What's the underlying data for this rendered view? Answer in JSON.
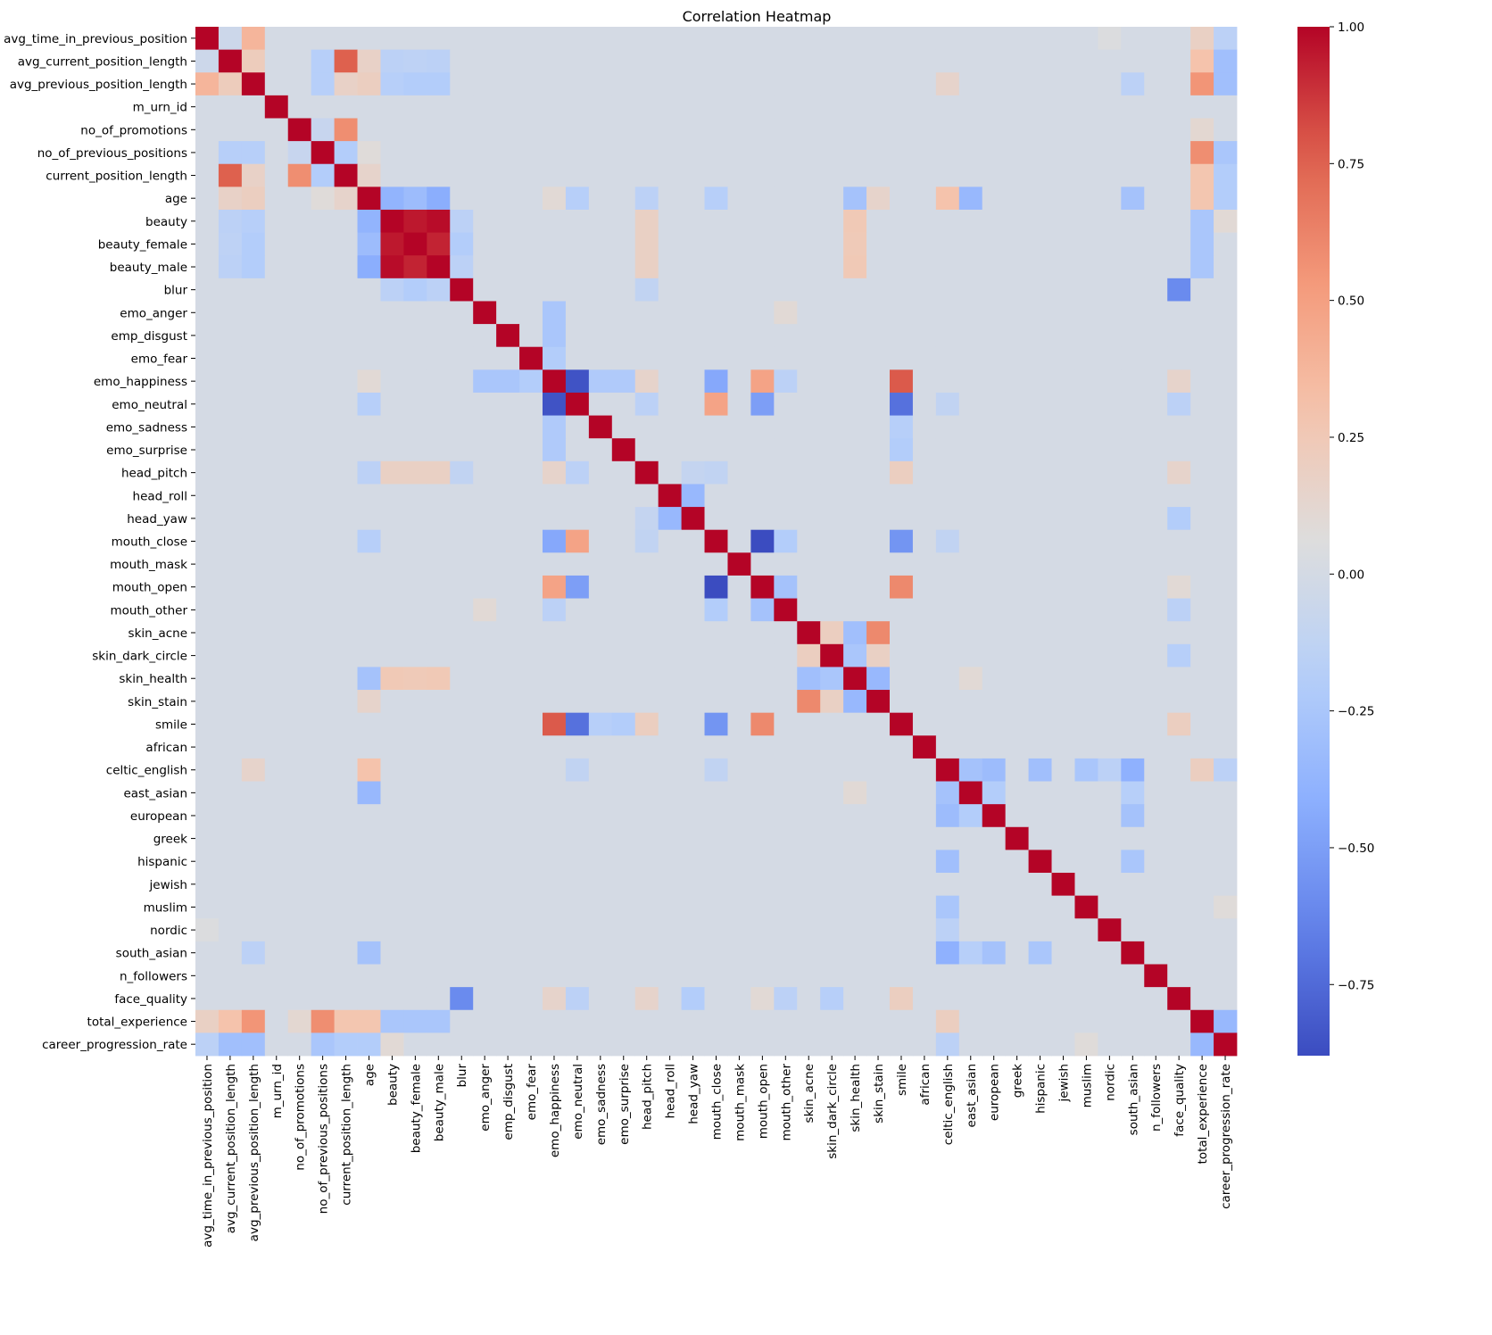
{
  "chart_data": {
    "type": "heatmap",
    "title": "Correlation Heatmap",
    "labels": [
      "avg_time_in_previous_position",
      "avg_current_position_length",
      "avg_previous_position_length",
      "m_urn_id",
      "no_of_promotions",
      "no_of_previous_positions",
      "current_position_length",
      "age",
      "beauty",
      "beauty_female",
      "beauty_male",
      "blur",
      "emo_anger",
      "emp_disgust",
      "emo_fear",
      "emo_happiness",
      "emo_neutral",
      "emo_sadness",
      "emo_surprise",
      "head_pitch",
      "head_roll",
      "head_yaw",
      "mouth_close",
      "mouth_mask",
      "mouth_open",
      "mouth_other",
      "skin_acne",
      "skin_dark_circle",
      "skin_health",
      "skin_stain",
      "smile",
      "african",
      "celtic_english",
      "east_asian",
      "european",
      "greek",
      "hispanic",
      "jewish",
      "muslim",
      "nordic",
      "south_asian",
      "n_followers",
      "face_quality",
      "total_experience",
      "career_progression_rate"
    ],
    "correlations": [
      {
        "a": "avg_time_in_previous_position",
        "b": "avg_current_position_length",
        "v": -0.05
      },
      {
        "a": "avg_time_in_previous_position",
        "b": "avg_previous_position_length",
        "v": 0.38
      },
      {
        "a": "avg_time_in_previous_position",
        "b": "total_experience",
        "v": 0.18
      },
      {
        "a": "avg_time_in_previous_position",
        "b": "career_progression_rate",
        "v": -0.15
      },
      {
        "a": "avg_time_in_previous_position",
        "b": "nordic",
        "v": 0.05
      },
      {
        "a": "avg_current_position_length",
        "b": "avg_previous_position_length",
        "v": 0.22
      },
      {
        "a": "avg_current_position_length",
        "b": "current_position_length",
        "v": 0.76
      },
      {
        "a": "avg_current_position_length",
        "b": "no_of_previous_positions",
        "v": -0.18
      },
      {
        "a": "avg_current_position_length",
        "b": "age",
        "v": 0.17
      },
      {
        "a": "avg_current_position_length",
        "b": "beauty",
        "v": -0.15
      },
      {
        "a": "avg_current_position_length",
        "b": "beauty_female",
        "v": -0.14
      },
      {
        "a": "avg_current_position_length",
        "b": "beauty_male",
        "v": -0.15
      },
      {
        "a": "avg_current_position_length",
        "b": "total_experience",
        "v": 0.3
      },
      {
        "a": "avg_current_position_length",
        "b": "career_progression_rate",
        "v": -0.3
      },
      {
        "a": "avg_previous_position_length",
        "b": "current_position_length",
        "v": 0.17
      },
      {
        "a": "avg_previous_position_length",
        "b": "age",
        "v": 0.2
      },
      {
        "a": "avg_previous_position_length",
        "b": "no_of_previous_positions",
        "v": -0.18
      },
      {
        "a": "avg_previous_position_length",
        "b": "beauty",
        "v": -0.18
      },
      {
        "a": "avg_previous_position_length",
        "b": "beauty_female",
        "v": -0.2
      },
      {
        "a": "avg_previous_position_length",
        "b": "beauty_male",
        "v": -0.2
      },
      {
        "a": "avg_previous_position_length",
        "b": "celtic_english",
        "v": 0.15
      },
      {
        "a": "avg_previous_position_length",
        "b": "total_experience",
        "v": 0.55
      },
      {
        "a": "avg_previous_position_length",
        "b": "career_progression_rate",
        "v": -0.3
      },
      {
        "a": "avg_previous_position_length",
        "b": "south_asian",
        "v": -0.15
      },
      {
        "a": "no_of_promotions",
        "b": "current_position_length",
        "v": 0.58
      },
      {
        "a": "no_of_promotions",
        "b": "no_of_previous_positions",
        "v": -0.08
      },
      {
        "a": "no_of_promotions",
        "b": "total_experience",
        "v": 0.12
      },
      {
        "a": "no_of_previous_positions",
        "b": "current_position_length",
        "v": -0.2
      },
      {
        "a": "no_of_previous_positions",
        "b": "age",
        "v": 0.08
      },
      {
        "a": "no_of_previous_positions",
        "b": "total_experience",
        "v": 0.58
      },
      {
        "a": "no_of_previous_positions",
        "b": "career_progression_rate",
        "v": -0.25
      },
      {
        "a": "current_position_length",
        "b": "age",
        "v": 0.15
      },
      {
        "a": "current_position_length",
        "b": "total_experience",
        "v": 0.28
      },
      {
        "a": "current_position_length",
        "b": "career_progression_rate",
        "v": -0.2
      },
      {
        "a": "age",
        "b": "beauty",
        "v": -0.38
      },
      {
        "a": "age",
        "b": "beauty_female",
        "v": -0.32
      },
      {
        "a": "age",
        "b": "beauty_male",
        "v": -0.42
      },
      {
        "a": "age",
        "b": "emo_happiness",
        "v": 0.1
      },
      {
        "a": "age",
        "b": "emo_neutral",
        "v": -0.18
      },
      {
        "a": "age",
        "b": "head_pitch",
        "v": -0.15
      },
      {
        "a": "age",
        "b": "mouth_close",
        "v": -0.18
      },
      {
        "a": "age",
        "b": "skin_health",
        "v": -0.28
      },
      {
        "a": "age",
        "b": "skin_stain",
        "v": 0.15
      },
      {
        "a": "age",
        "b": "celtic_english",
        "v": 0.3
      },
      {
        "a": "age",
        "b": "east_asian",
        "v": -0.35
      },
      {
        "a": "age",
        "b": "south_asian",
        "v": -0.28
      },
      {
        "a": "age",
        "b": "total_experience",
        "v": 0.28
      },
      {
        "a": "age",
        "b": "career_progression_rate",
        "v": -0.2
      },
      {
        "a": "beauty",
        "b": "beauty_female",
        "v": 0.95
      },
      {
        "a": "beauty",
        "b": "beauty_male",
        "v": 0.98
      },
      {
        "a": "beauty",
        "b": "head_pitch",
        "v": 0.18
      },
      {
        "a": "beauty",
        "b": "skin_health",
        "v": 0.25
      },
      {
        "a": "beauty",
        "b": "total_experience",
        "v": -0.25
      },
      {
        "a": "beauty",
        "b": "career_progression_rate",
        "v": 0.1
      },
      {
        "a": "beauty",
        "b": "blur",
        "v": -0.15
      },
      {
        "a": "beauty_female",
        "b": "beauty_male",
        "v": 0.92
      },
      {
        "a": "beauty_female",
        "b": "head_pitch",
        "v": 0.18
      },
      {
        "a": "beauty_female",
        "b": "skin_health",
        "v": 0.24
      },
      {
        "a": "beauty_female",
        "b": "total_experience",
        "v": -0.25
      },
      {
        "a": "beauty_female",
        "b": "blur",
        "v": -0.2
      },
      {
        "a": "beauty_male",
        "b": "head_pitch",
        "v": 0.18
      },
      {
        "a": "beauty_male",
        "b": "skin_health",
        "v": 0.25
      },
      {
        "a": "beauty_male",
        "b": "total_experience",
        "v": -0.25
      },
      {
        "a": "beauty_male",
        "b": "blur",
        "v": -0.15
      },
      {
        "a": "blur",
        "b": "face_quality",
        "v": -0.6
      },
      {
        "a": "blur",
        "b": "head_pitch",
        "v": -0.12
      },
      {
        "a": "emo_anger",
        "b": "emo_happiness",
        "v": -0.25
      },
      {
        "a": "emo_anger",
        "b": "mouth_other",
        "v": 0.1
      },
      {
        "a": "emp_disgust",
        "b": "emo_happiness",
        "v": -0.25
      },
      {
        "a": "emo_fear",
        "b": "emo_happiness",
        "v": -0.2
      },
      {
        "a": "emo_happiness",
        "b": "emo_neutral",
        "v": -0.85
      },
      {
        "a": "emo_happiness",
        "b": "emo_sadness",
        "v": -0.22
      },
      {
        "a": "emo_happiness",
        "b": "emo_surprise",
        "v": -0.22
      },
      {
        "a": "emo_happiness",
        "b": "head_pitch",
        "v": 0.15
      },
      {
        "a": "emo_happiness",
        "b": "mouth_close",
        "v": -0.45
      },
      {
        "a": "emo_happiness",
        "b": "mouth_open",
        "v": 0.48
      },
      {
        "a": "emo_happiness",
        "b": "mouth_other",
        "v": -0.15
      },
      {
        "a": "emo_happiness",
        "b": "smile",
        "v": 0.78
      },
      {
        "a": "emo_happiness",
        "b": "face_quality",
        "v": 0.15
      },
      {
        "a": "emo_neutral",
        "b": "mouth_close",
        "v": 0.48
      },
      {
        "a": "emo_neutral",
        "b": "mouth_open",
        "v": -0.5
      },
      {
        "a": "emo_neutral",
        "b": "smile",
        "v": -0.72
      },
      {
        "a": "emo_neutral",
        "b": "head_pitch",
        "v": -0.15
      },
      {
        "a": "emo_neutral",
        "b": "celtic_english",
        "v": -0.12
      },
      {
        "a": "emo_neutral",
        "b": "face_quality",
        "v": -0.15
      },
      {
        "a": "emo_sadness",
        "b": "smile",
        "v": -0.18
      },
      {
        "a": "emo_surprise",
        "b": "smile",
        "v": -0.2
      },
      {
        "a": "head_pitch",
        "b": "smile",
        "v": 0.2
      },
      {
        "a": "head_pitch",
        "b": "face_quality",
        "v": 0.15
      },
      {
        "a": "head_pitch",
        "b": "head_yaw",
        "v": -0.1
      },
      {
        "a": "head_pitch",
        "b": "mouth_close",
        "v": -0.12
      },
      {
        "a": "head_roll",
        "b": "head_yaw",
        "v": -0.35
      },
      {
        "a": "head_yaw",
        "b": "face_quality",
        "v": -0.2
      },
      {
        "a": "mouth_close",
        "b": "mouth_open",
        "v": -0.88
      },
      {
        "a": "mouth_close",
        "b": "mouth_other",
        "v": -0.2
      },
      {
        "a": "mouth_close",
        "b": "smile",
        "v": -0.55
      },
      {
        "a": "mouth_close",
        "b": "celtic_english",
        "v": -0.12
      },
      {
        "a": "mouth_open",
        "b": "mouth_other",
        "v": -0.28
      },
      {
        "a": "mouth_open",
        "b": "smile",
        "v": 0.6
      },
      {
        "a": "mouth_open",
        "b": "face_quality",
        "v": 0.1
      },
      {
        "a": "mouth_other",
        "b": "face_quality",
        "v": -0.15
      },
      {
        "a": "skin_acne",
        "b": "skin_dark_circle",
        "v": 0.2
      },
      {
        "a": "skin_acne",
        "b": "skin_health",
        "v": -0.3
      },
      {
        "a": "skin_acne",
        "b": "skin_stain",
        "v": 0.6
      },
      {
        "a": "skin_dark_circle",
        "b": "skin_health",
        "v": -0.25
      },
      {
        "a": "skin_dark_circle",
        "b": "skin_stain",
        "v": 0.18
      },
      {
        "a": "skin_dark_circle",
        "b": "face_quality",
        "v": -0.18
      },
      {
        "a": "skin_health",
        "b": "skin_stain",
        "v": -0.35
      },
      {
        "a": "skin_health",
        "b": "east_asian",
        "v": 0.1
      },
      {
        "a": "smile",
        "b": "face_quality",
        "v": 0.2
      },
      {
        "a": "celtic_english",
        "b": "east_asian",
        "v": -0.28
      },
      {
        "a": "celtic_english",
        "b": "european",
        "v": -0.32
      },
      {
        "a": "celtic_english",
        "b": "hispanic",
        "v": -0.3
      },
      {
        "a": "celtic_english",
        "b": "muslim",
        "v": -0.25
      },
      {
        "a": "celtic_english",
        "b": "nordic",
        "v": -0.15
      },
      {
        "a": "celtic_english",
        "b": "south_asian",
        "v": -0.4
      },
      {
        "a": "celtic_english",
        "b": "total_experience",
        "v": 0.2
      },
      {
        "a": "celtic_english",
        "b": "career_progression_rate",
        "v": -0.15
      },
      {
        "a": "east_asian",
        "b": "european",
        "v": -0.2
      },
      {
        "a": "east_asian",
        "b": "south_asian",
        "v": -0.18
      },
      {
        "a": "european",
        "b": "south_asian",
        "v": -0.28
      },
      {
        "a": "hispanic",
        "b": "south_asian",
        "v": -0.25
      },
      {
        "a": "muslim",
        "b": "career_progression_rate",
        "v": 0.08
      },
      {
        "a": "total_experience",
        "b": "career_progression_rate",
        "v": -0.35
      }
    ],
    "colorbar": {
      "min": -0.88,
      "max": 1.0,
      "ticks": [
        1.0,
        0.75,
        0.5,
        0.25,
        0.0,
        -0.25,
        -0.5,
        -0.75
      ],
      "tick_labels": [
        "1.00",
        "0.75",
        "0.50",
        "0.25",
        "0.00",
        "−0.25",
        "−0.50",
        "−0.75"
      ]
    },
    "colormap": "coolwarm",
    "grid": false
  }
}
